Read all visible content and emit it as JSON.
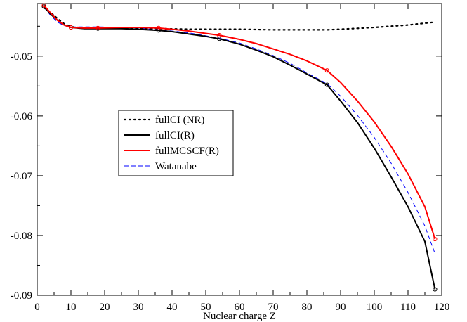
{
  "chart_data": {
    "type": "line",
    "title": "",
    "xlabel": "Nuclear charge Z",
    "ylabel": "",
    "xlim": [
      0,
      120
    ],
    "ylim": [
      -0.09,
      -0.0412
    ],
    "xticks": [
      0,
      10,
      20,
      30,
      40,
      50,
      60,
      70,
      80,
      90,
      100,
      110,
      120
    ],
    "xtick_labels": [
      "0",
      "10",
      "20",
      "30",
      "40",
      "50",
      "60",
      "70",
      "80",
      "90",
      "100",
      "110",
      "120"
    ],
    "yticks": [
      -0.09,
      -0.08,
      -0.07,
      -0.06,
      -0.05
    ],
    "ytick_labels": [
      "-0.09",
      "-0.08",
      "-0.07",
      "-0.06",
      "-0.05"
    ],
    "grid": false,
    "legend_position": "left-middle",
    "series": [
      {
        "name": "fullCI (NR)",
        "color": "#000000",
        "style": "dotted",
        "markers": false,
        "x": [
          2,
          4,
          6,
          8,
          10,
          14,
          18,
          25,
          30,
          36,
          45,
          54,
          60,
          70,
          80,
          86,
          90,
          100,
          110,
          118
        ],
        "y": [
          -0.0419,
          -0.0427,
          -0.0437,
          -0.0446,
          -0.0451,
          -0.0453,
          -0.0453,
          -0.0453,
          -0.0454,
          -0.0454,
          -0.0455,
          -0.0455,
          -0.0455,
          -0.0456,
          -0.0456,
          -0.0456,
          -0.0455,
          -0.0452,
          -0.0448,
          -0.0443
        ]
      },
      {
        "name": "fullCI(R)",
        "color": "#000000",
        "style": "solid",
        "markers": true,
        "marker_x": [
          2,
          10,
          18,
          36,
          54,
          86,
          118
        ],
        "x": [
          2,
          4,
          6,
          8,
          10,
          14,
          18,
          25,
          30,
          36,
          40,
          45,
          50,
          54,
          60,
          65,
          70,
          75,
          80,
          86,
          90,
          95,
          100,
          105,
          110,
          115,
          118
        ],
        "y": [
          -0.0417,
          -0.043,
          -0.044,
          -0.0448,
          -0.0452,
          -0.0454,
          -0.0454,
          -0.0454,
          -0.0455,
          -0.0457,
          -0.0459,
          -0.0463,
          -0.0467,
          -0.0471,
          -0.048,
          -0.049,
          -0.0501,
          -0.0515,
          -0.053,
          -0.0548,
          -0.0575,
          -0.0611,
          -0.0654,
          -0.0702,
          -0.0752,
          -0.081,
          -0.089
        ]
      },
      {
        "name": "fullMCSCF(R)",
        "color": "#ff0000",
        "style": "solid",
        "markers": true,
        "marker_x": [
          2,
          10,
          18,
          36,
          54,
          86,
          118
        ],
        "x": [
          2,
          4,
          6,
          8,
          10,
          14,
          18,
          25,
          30,
          36,
          40,
          45,
          50,
          54,
          60,
          65,
          70,
          75,
          80,
          86,
          90,
          95,
          100,
          105,
          110,
          115,
          118
        ],
        "y": [
          -0.0415,
          -0.0428,
          -0.044,
          -0.0448,
          -0.0452,
          -0.0453,
          -0.0453,
          -0.0452,
          -0.0452,
          -0.0453,
          -0.0455,
          -0.0458,
          -0.0462,
          -0.0465,
          -0.0472,
          -0.0479,
          -0.0488,
          -0.0497,
          -0.0508,
          -0.0524,
          -0.0544,
          -0.0575,
          -0.061,
          -0.0651,
          -0.0697,
          -0.0752,
          -0.0806
        ]
      },
      {
        "name": "Watanabe",
        "color": "#0000ff",
        "style": "dashed",
        "markers": false,
        "x": [
          2,
          4,
          6,
          8,
          10,
          14,
          18,
          25,
          30,
          36,
          40,
          45,
          50,
          54,
          60,
          65,
          70,
          75,
          80,
          86,
          90,
          95,
          100,
          105,
          110,
          115,
          118
        ],
        "y": [
          -0.0418,
          -0.0432,
          -0.0443,
          -0.0449,
          -0.0451,
          -0.0451,
          -0.0451,
          -0.0452,
          -0.0453,
          -0.0456,
          -0.0458,
          -0.0461,
          -0.0466,
          -0.047,
          -0.0478,
          -0.0488,
          -0.0499,
          -0.0512,
          -0.0528,
          -0.0546,
          -0.0567,
          -0.0599,
          -0.0636,
          -0.0679,
          -0.0728,
          -0.0784,
          -0.083
        ]
      }
    ]
  }
}
